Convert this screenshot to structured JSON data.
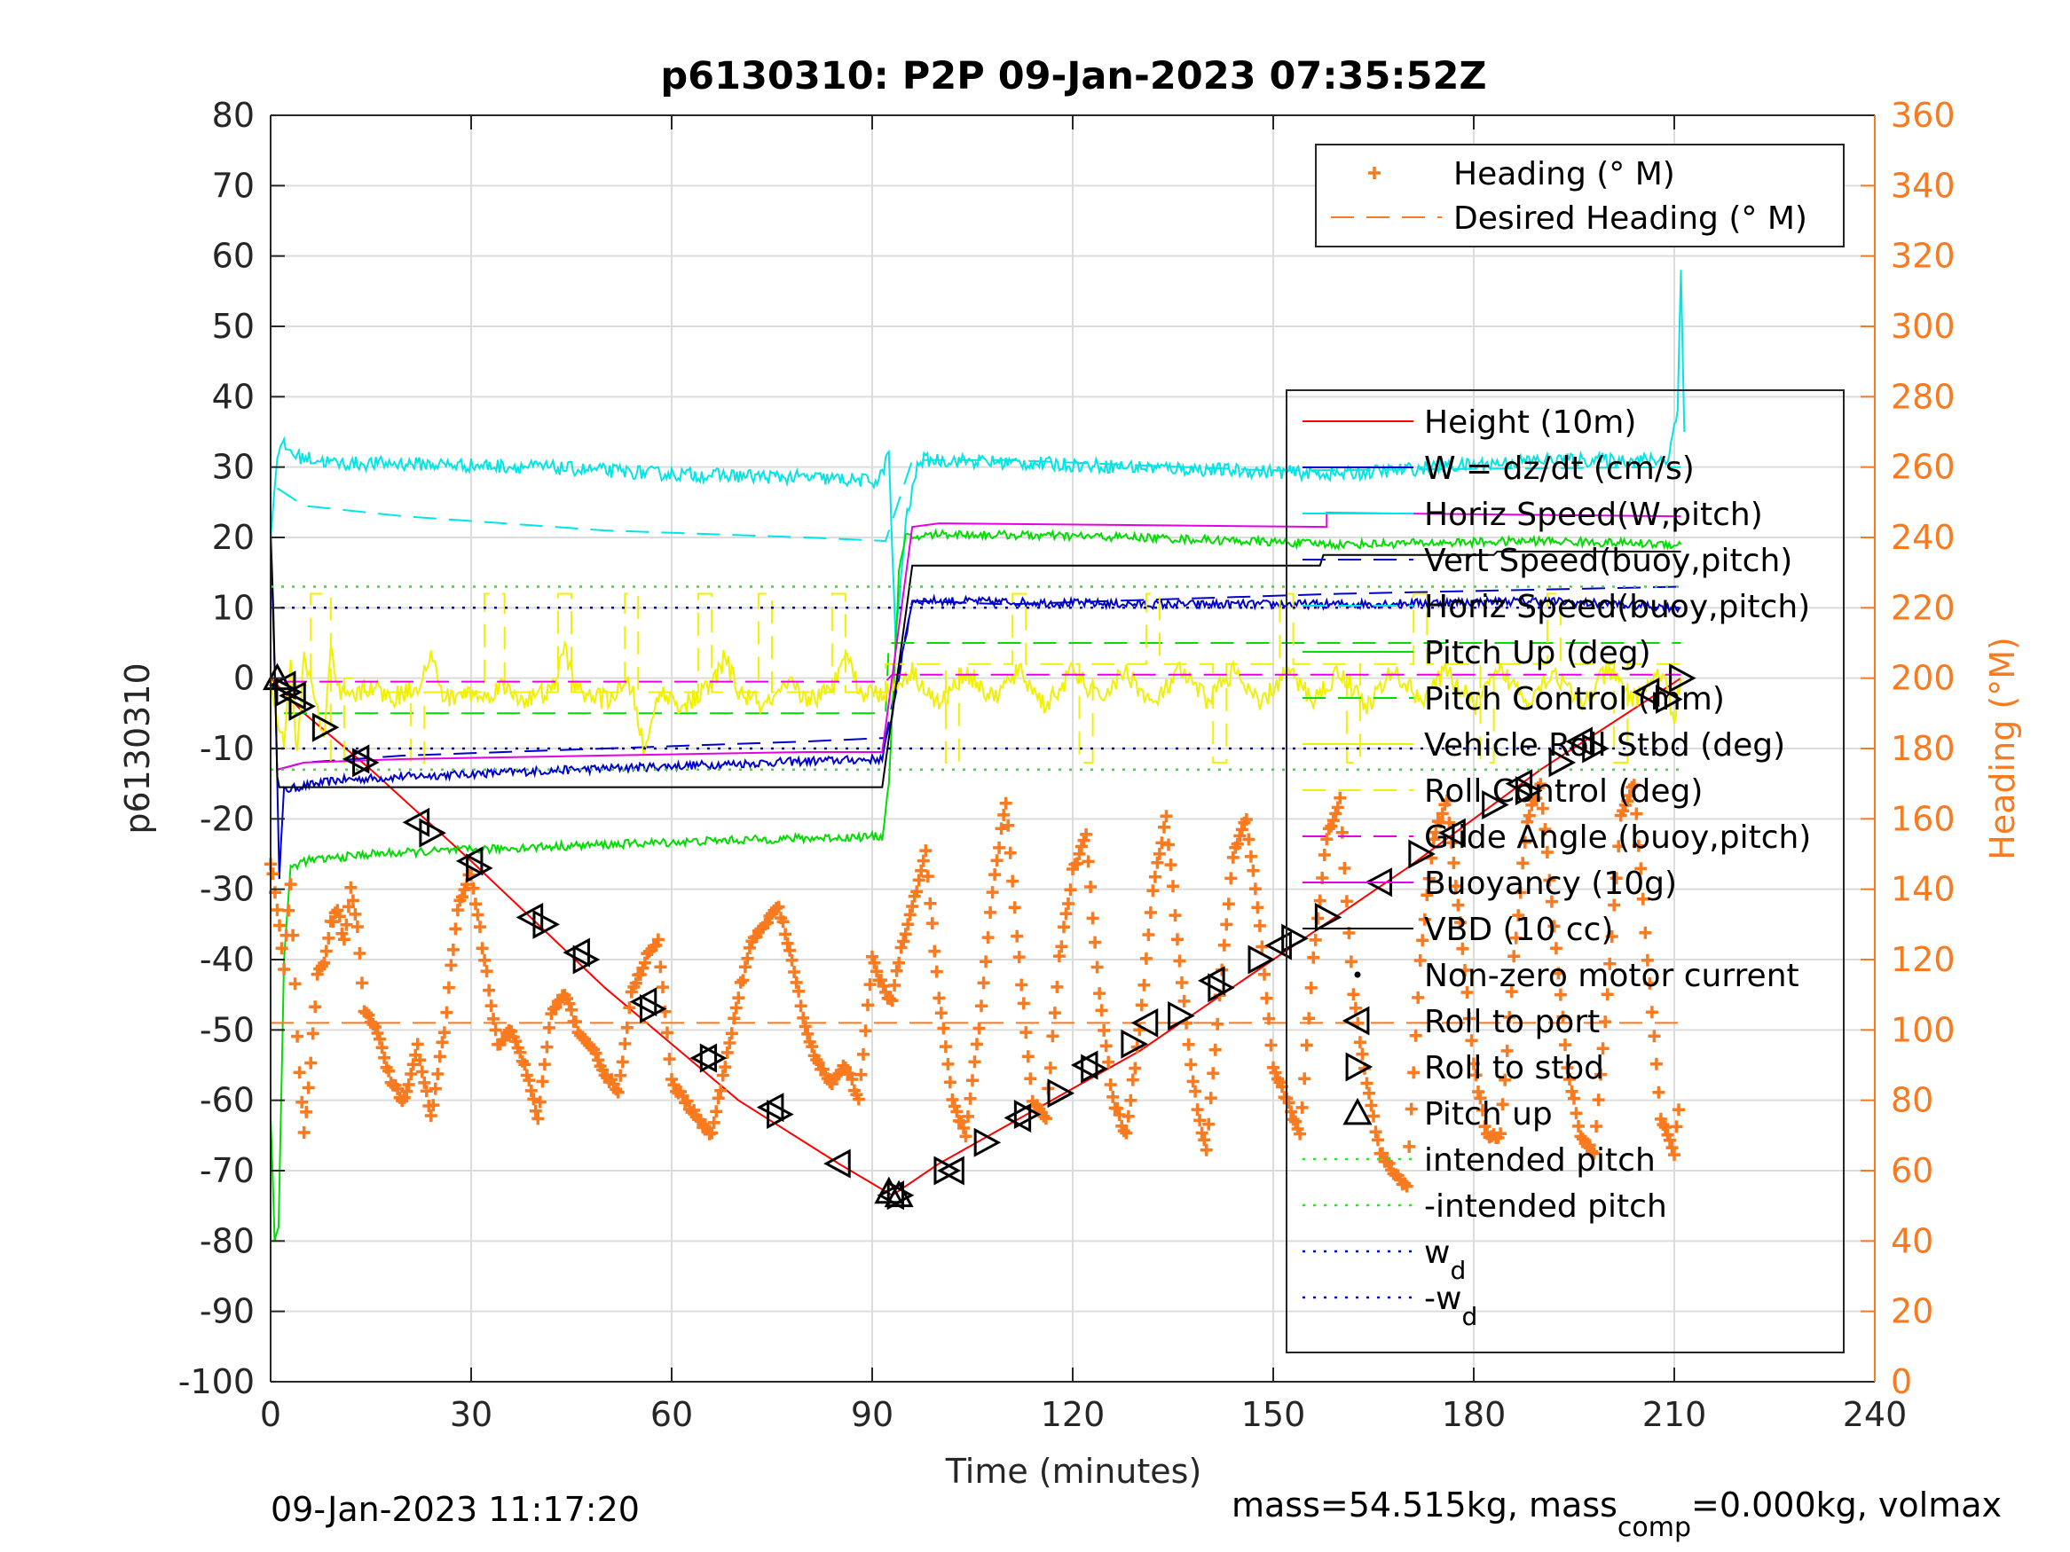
{
  "chart_data": {
    "type": "line",
    "title": "p6130310: P2P 09-Jan-2023 07:35:52Z",
    "xlabel": "Time (minutes)",
    "ylabel_left": "p6130310",
    "ylabel_right": "Heading (°M)",
    "xlim": [
      0,
      240
    ],
    "ylim_left": [
      -100,
      80
    ],
    "ylim_right": [
      0,
      360
    ],
    "x_ticks": [
      "0",
      "30",
      "60",
      "90",
      "120",
      "150",
      "180",
      "210",
      "240"
    ],
    "y_left_ticks": [
      "80",
      "70",
      "60",
      "50",
      "40",
      "30",
      "20",
      "10",
      "0",
      "-10",
      "-20",
      "-30",
      "-40",
      "-50",
      "-60",
      "-70",
      "-80",
      "-90",
      "-100"
    ],
    "y_right_ticks": [
      "360",
      "340",
      "320",
      "300",
      "280",
      "260",
      "240",
      "220",
      "200",
      "180",
      "160",
      "140",
      "120",
      "100",
      "80",
      "60",
      "40",
      "20",
      "0"
    ],
    "grid": true,
    "footer_left": "09-Jan-2023 11:17:20",
    "footer_right": {
      "part1": "mass=54.515kg, mass",
      "sub": "comp",
      "part2": "=0.000kg, volmax"
    },
    "legend_top": [
      {
        "label": "Heading (° M)",
        "color": "#f97a1f",
        "style": "plus"
      },
      {
        "label": "Desired Heading (° M)",
        "color": "#f97a1f",
        "style": "dash"
      }
    ],
    "legend_main": [
      {
        "label": "Height (10m)",
        "color": "#ff0000",
        "style": "solid"
      },
      {
        "label": "W = dz/dt (cm/s)",
        "color": "#0000cc",
        "style": "solid"
      },
      {
        "label": "Horiz Speed(W,pitch)",
        "color": "#00e5e5",
        "style": "solid"
      },
      {
        "label": "Vert Speed(buoy,pitch)",
        "color": "#0000cc",
        "style": "dash"
      },
      {
        "label": "Horiz Speed(buoy,pitch)",
        "color": "#00e5e5",
        "style": "dash"
      },
      {
        "label": "Pitch Up (deg)",
        "color": "#00dd00",
        "style": "solid"
      },
      {
        "label": "Pitch Control (mm)",
        "color": "#00dd00",
        "style": "dash"
      },
      {
        "label": "Vehicle Roll Stbd (deg)",
        "color": "#f0f000",
        "style": "solid"
      },
      {
        "label": "Roll Control (deg)",
        "color": "#f0f000",
        "style": "dash"
      },
      {
        "label": "Glide Angle (buoy,pitch)",
        "color": "#e600e6",
        "style": "dash"
      },
      {
        "label": "Buoyancy (10g)",
        "color": "#e600e6",
        "style": "solid"
      },
      {
        "label": "VBD (10 cc)",
        "color": "#000000",
        "style": "solid"
      },
      {
        "label": "Non-zero motor current",
        "color": "#000000",
        "style": "dot"
      },
      {
        "label": "Roll to port",
        "color": "#000000",
        "style": "tri-left"
      },
      {
        "label": "Roll to stbd",
        "color": "#000000",
        "style": "tri-right"
      },
      {
        "label": "Pitch up",
        "color": "#000000",
        "style": "tri-up"
      },
      {
        "label": "intended pitch",
        "color": "#33dd33",
        "style": "dotted"
      },
      {
        "label": "-intended pitch",
        "color": "#33dd33",
        "style": "dotted"
      },
      {
        "label": "w",
        "sub": "d",
        "color": "#0000cc",
        "style": "dotted"
      },
      {
        "label": "-w",
        "sub": "d",
        "color": "#0000cc",
        "style": "dotted"
      }
    ],
    "series": [
      {
        "name": "Height (10m)",
        "color": "#ff0000",
        "axis": "left",
        "style": "solid",
        "x": [
          0,
          5,
          15,
          30,
          50,
          70,
          85,
          93,
          100,
          115,
          130,
          150,
          170,
          190,
          211
        ],
        "y": [
          0,
          -5,
          -13,
          -26,
          -44,
          -60,
          -69,
          -73.5,
          -69,
          -61,
          -53,
          -40,
          -27,
          -13,
          0
        ]
      },
      {
        "name": "W = dz/dt (cm/s)",
        "color": "#0000cc",
        "axis": "left",
        "style": "solid",
        "noise": 0.6,
        "x": [
          0,
          0.8,
          1.3,
          2,
          4,
          10,
          20,
          40,
          60,
          80,
          91.5,
          93,
          96,
          100,
          130,
          160,
          190,
          211
        ],
        "y": [
          20,
          -5,
          -28,
          -16,
          -15.5,
          -14.5,
          -14,
          -13.2,
          -12.5,
          -11.8,
          -11.5,
          -5,
          11,
          11,
          10.5,
          10.5,
          11,
          10
        ]
      },
      {
        "name": "Horiz Speed(W,pitch)",
        "color": "#00e5e5",
        "axis": "left",
        "style": "solid",
        "noise": 1.0,
        "x": [
          0,
          1,
          2,
          4,
          10,
          20,
          40,
          60,
          80,
          91,
          92.5,
          93.5,
          95,
          97,
          100,
          130,
          160,
          190,
          209,
          210.5,
          211,
          211.5
        ],
        "y": [
          20,
          32,
          33,
          31.5,
          30.5,
          30.5,
          30,
          29,
          28.5,
          28,
          32,
          5,
          22,
          31,
          31,
          30,
          29,
          31,
          31,
          38,
          59,
          35
        ]
      },
      {
        "name": "Vert Speed(buoy,pitch)",
        "color": "#0000cc",
        "axis": "left",
        "style": "dash",
        "x": [
          1,
          5,
          20,
          50,
          80,
          92,
          96,
          110,
          160,
          211
        ],
        "y": [
          -13,
          -12,
          -11,
          -10,
          -9,
          -8.5,
          11,
          10.5,
          12,
          13
        ]
      },
      {
        "name": "Horiz Speed(buoy,pitch)",
        "color": "#00e5e5",
        "axis": "left",
        "style": "dash",
        "x": [
          1,
          5,
          20,
          50,
          80,
          92,
          96,
          110,
          150,
          211
        ],
        "y": [
          27,
          24.5,
          23,
          21,
          20,
          19.5,
          31,
          31,
          29.5,
          30
        ]
      },
      {
        "name": "Pitch Up (deg)",
        "color": "#00dd00",
        "axis": "left",
        "style": "solid",
        "noise": 0.6,
        "x": [
          0,
          0.6,
          1.2,
          2,
          3,
          5,
          15,
          40,
          70,
          91.5,
          92.5,
          94,
          95,
          96,
          100,
          130,
          160,
          190,
          211
        ],
        "y": [
          -62,
          -80,
          -78,
          -40,
          -27,
          -26,
          -25,
          -24,
          -23,
          -22.5,
          -15,
          15,
          20,
          20,
          20.5,
          20,
          19,
          19.5,
          19
        ]
      },
      {
        "name": "Pitch Control (mm)",
        "color": "#00dd00",
        "axis": "left",
        "style": "dash",
        "x": [
          2,
          92,
          92.5,
          211
        ],
        "y": [
          -5,
          -5,
          5,
          5
        ]
      },
      {
        "name": "Vehicle Roll Stbd (deg)",
        "color": "#f0f000",
        "axis": "left",
        "style": "solid",
        "noise": 1.5,
        "x": [
          0,
          1,
          2,
          3,
          4,
          5,
          6,
          8,
          9,
          10,
          12,
          15,
          18,
          22,
          24,
          26,
          30,
          32,
          34,
          38,
          42,
          44,
          46,
          50,
          54,
          56,
          58,
          62,
          66,
          68,
          70,
          74,
          78,
          80,
          84,
          86,
          88,
          92,
          96,
          100,
          104,
          108,
          112,
          116,
          120,
          124,
          128,
          132,
          136,
          140,
          144,
          148,
          152,
          156,
          160,
          164,
          168,
          172,
          176,
          180,
          184,
          188,
          192,
          196,
          200,
          204,
          208,
          210,
          211
        ],
        "y": [
          0,
          -6,
          -9,
          2,
          -11,
          3,
          0,
          -9,
          4,
          -2,
          -3,
          -1,
          -3,
          -1,
          3,
          -3,
          -2,
          -3,
          -1,
          -3,
          -2,
          4,
          -2,
          -3,
          -1,
          -11,
          -2,
          -4,
          -1,
          3,
          -2,
          -4,
          -1,
          -3,
          -2,
          5,
          -2,
          -2,
          1,
          -4,
          1,
          -3,
          1,
          -4,
          1,
          -3,
          1,
          -4,
          1,
          -3,
          1,
          -4,
          1,
          -3,
          1,
          -4,
          1,
          -3,
          1,
          -4,
          1,
          -3,
          1,
          -4,
          1,
          -3,
          1,
          -6,
          0
        ]
      },
      {
        "name": "Roll Control (deg)",
        "color": "#f0f000",
        "axis": "left",
        "style": "dash",
        "x": [
          2,
          6,
          6,
          9,
          9,
          11,
          11,
          14,
          14,
          21,
          21,
          23,
          23,
          32,
          32,
          35,
          35,
          43,
          43,
          45,
          45,
          53,
          53,
          55,
          55,
          64,
          64,
          66,
          66,
          73,
          73,
          75,
          75,
          84,
          84,
          86,
          86,
          92,
          92,
          101,
          101,
          103,
          103,
          111,
          111,
          113,
          113,
          121,
          121,
          123,
          123,
          131,
          131,
          133,
          133,
          141,
          141,
          143,
          143,
          151,
          151,
          153,
          153,
          161,
          161,
          163,
          163,
          171,
          171,
          173,
          173,
          181,
          181,
          183,
          183,
          191,
          191,
          193,
          193,
          201,
          201,
          203,
          203,
          211
        ],
        "y": [
          -1,
          -1,
          12,
          12,
          -12,
          -12,
          0,
          0,
          -2,
          -2,
          -12,
          -12,
          -2,
          -2,
          12,
          12,
          -2,
          -2,
          12,
          12,
          -2,
          -2,
          12,
          12,
          -2,
          -2,
          12,
          12,
          -2,
          -2,
          12,
          12,
          -2,
          -2,
          12,
          12,
          -2,
          -2,
          2,
          2,
          -12,
          -12,
          2,
          2,
          12,
          12,
          2,
          2,
          -12,
          -12,
          2,
          2,
          12,
          12,
          2,
          2,
          -12,
          -12,
          2,
          2,
          12,
          12,
          2,
          2,
          -12,
          -12,
          2,
          2,
          12,
          12,
          2,
          2,
          -12,
          -12,
          2,
          2,
          12,
          12,
          2,
          2,
          -12,
          -12,
          2,
          2
        ]
      },
      {
        "name": "Glide Angle (buoy,pitch)",
        "color": "#e600e6",
        "axis": "left",
        "style": "dash",
        "x": [
          2,
          92,
          93,
          211
        ],
        "y": [
          -0.5,
          -0.5,
          0.5,
          0.5
        ]
      },
      {
        "name": "Buoyancy (10g)",
        "color": "#e600e6",
        "axis": "left",
        "style": "solid",
        "x": [
          1,
          5,
          20,
          50,
          80,
          91.5,
          96,
          100,
          158,
          158,
          211
        ],
        "y": [
          -13,
          -12,
          -11.5,
          -11,
          -10.5,
          -10.5,
          21.5,
          22,
          21.5,
          23.5,
          23
        ]
      },
      {
        "name": "VBD (10 cc)",
        "color": "#000000",
        "axis": "left",
        "style": "solid",
        "x": [
          0,
          0.4,
          1,
          1.3,
          91.5,
          96,
          157,
          157.5,
          183,
          183.5,
          211
        ],
        "y": [
          21,
          10,
          -14,
          -15.5,
          -15.5,
          16,
          16,
          17.5,
          17.5,
          18,
          18
        ]
      },
      {
        "name": "intended pitch",
        "color": "#33dd33",
        "axis": "left",
        "style": "dotted",
        "x": [
          0,
          211
        ],
        "y": [
          13,
          13
        ]
      },
      {
        "name": "-intended pitch",
        "color": "#33dd33",
        "axis": "left",
        "style": "dotted",
        "x": [
          0,
          211
        ],
        "y": [
          -13,
          -13
        ]
      },
      {
        "name": "w_d",
        "color": "#0000cc",
        "axis": "left",
        "style": "dotted",
        "x": [
          0,
          211
        ],
        "y": [
          10,
          10
        ]
      },
      {
        "name": "-w_d",
        "color": "#0000cc",
        "axis": "left",
        "style": "dotted",
        "x": [
          0,
          211
        ],
        "y": [
          -10,
          -10
        ]
      },
      {
        "name": "Desired Heading (° M)",
        "color": "#f97a1f",
        "axis": "right",
        "style": "dash",
        "x": [
          0,
          211
        ],
        "y": [
          102,
          102
        ]
      }
    ],
    "heading": {
      "name": "Heading (° M)",
      "color": "#f97a1f",
      "axis": "right",
      "marker": "plus",
      "x": [
        0,
        1,
        2,
        3,
        4,
        5,
        6,
        7,
        8,
        9,
        10,
        11,
        12,
        13,
        14,
        16,
        18,
        20,
        22,
        24,
        26,
        28,
        30,
        32,
        34,
        36,
        38,
        40,
        42,
        44,
        46,
        48,
        50,
        52,
        54,
        56,
        58,
        60,
        62,
        64,
        66,
        68,
        70,
        72,
        74,
        76,
        78,
        80,
        82,
        84,
        86,
        88,
        90,
        92,
        93,
        94,
        96,
        98,
        100,
        102,
        104,
        106,
        108,
        110,
        112,
        114,
        116,
        118,
        120,
        122,
        124,
        126,
        128,
        130,
        132,
        134,
        136,
        138,
        140,
        142,
        144,
        146,
        148,
        150,
        152,
        154,
        156,
        158,
        160,
        162,
        164,
        166,
        168,
        170,
        172,
        174,
        176,
        178,
        180,
        182,
        184,
        186,
        188,
        190,
        192,
        194,
        196,
        198,
        200,
        202,
        204,
        206,
        208,
        210,
        211
      ],
      "y": [
        148,
        135,
        118,
        142,
        98,
        70,
        90,
        115,
        120,
        130,
        135,
        125,
        140,
        130,
        105,
        100,
        85,
        80,
        95,
        75,
        100,
        135,
        145,
        120,
        95,
        100,
        90,
        75,
        105,
        110,
        100,
        95,
        88,
        82,
        110,
        120,
        125,
        85,
        80,
        75,
        70,
        90,
        110,
        125,
        130,
        135,
        120,
        100,
        90,
        85,
        90,
        80,
        120,
        110,
        108,
        120,
        135,
        150,
        110,
        80,
        70,
        100,
        140,
        165,
        120,
        80,
        75,
        120,
        145,
        155,
        110,
        80,
        70,
        100,
        140,
        160,
        120,
        85,
        65,
        110,
        150,
        160,
        130,
        90,
        80,
        70,
        120,
        155,
        165,
        110,
        85,
        65,
        60,
        55,
        120,
        155,
        165,
        130,
        90,
        70,
        70,
        120,
        160,
        170,
        130,
        90,
        70,
        65,
        110,
        160,
        170,
        120,
        75,
        65,
        85
      ]
    },
    "markers": {
      "roll_port": {
        "x": [
          2,
          3.5,
          13,
          22,
          30,
          39,
          46,
          56,
          65,
          75,
          85,
          93,
          102,
          112,
          122,
          131,
          141,
          151,
          166,
          177,
          187,
          196,
          206
        ],
        "y": [
          -1,
          -2.5,
          -11.5,
          -20.5,
          -26,
          -34,
          -39,
          -46,
          -54,
          -61,
          -69,
          -73.5,
          -70,
          -62.5,
          -55,
          -49,
          -43,
          -38,
          -29,
          -22,
          -15,
          -9,
          -2
        ]
      },
      "roll_stbd": {
        "x": [
          2.5,
          4.5,
          8,
          14,
          24,
          31,
          41,
          47,
          57,
          66,
          76,
          94,
          101,
          107,
          113,
          118,
          123,
          129,
          136,
          142,
          148,
          153,
          158,
          172,
          183,
          188,
          193,
          198,
          209,
          211
        ],
        "y": [
          -2,
          -4,
          -7,
          -12,
          -22,
          -27,
          -35,
          -40,
          -47,
          -54,
          -62,
          -73.5,
          -70,
          -66,
          -62,
          -59,
          -55.5,
          -52,
          -48,
          -44,
          -40,
          -37,
          -34,
          -25,
          -18,
          -16,
          -12,
          -10,
          -3,
          0
        ]
      },
      "pitch_up": {
        "x": [
          1,
          92.5,
          94
        ],
        "y": [
          0,
          -73,
          -73.5
        ]
      }
    }
  }
}
